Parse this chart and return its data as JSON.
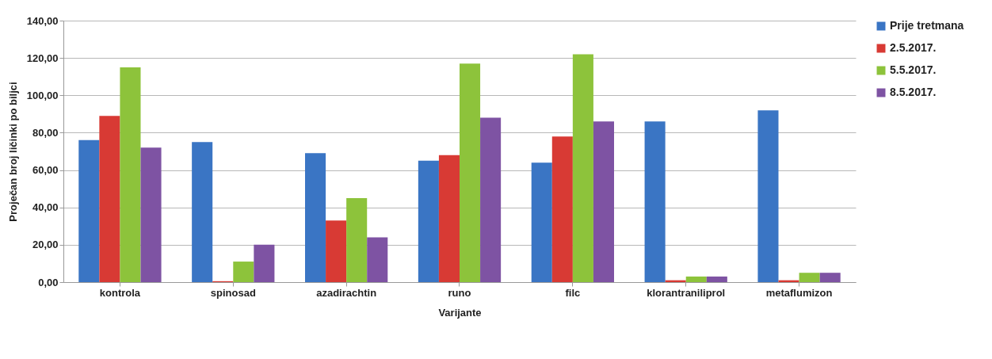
{
  "chart_data": {
    "type": "bar",
    "xlabel": "Varijante",
    "ylabel": "Proječan broj ličinki po biljci",
    "categories": [
      "kontrola",
      "spinosad",
      "azadirachtin",
      "runo",
      "filc",
      "klorantraniliprol",
      "metaflumizon"
    ],
    "series": [
      {
        "name": "Prije tretmana",
        "color": "#3a75c4",
        "values": [
          76,
          75,
          69,
          65,
          64,
          86,
          92
        ]
      },
      {
        "name": "2.5.2017.",
        "color": "#d83a34",
        "values": [
          89,
          0.5,
          33,
          68,
          78,
          1,
          1
        ]
      },
      {
        "name": "5.5.2017.",
        "color": "#8dc33b",
        "values": [
          115,
          11,
          45,
          117,
          122,
          3,
          5
        ]
      },
      {
        "name": "8.5.2017.",
        "color": "#7e53a3",
        "values": [
          72,
          20,
          24,
          88,
          86,
          3,
          5
        ]
      }
    ],
    "ylim": [
      0,
      140
    ],
    "yticks": [
      {
        "value": 0,
        "label": "0,00"
      },
      {
        "value": 20,
        "label": "20,00"
      },
      {
        "value": 40,
        "label": "40,00"
      },
      {
        "value": 60,
        "label": "60,00"
      },
      {
        "value": 80,
        "label": "80,00"
      },
      {
        "value": 100,
        "label": "100,00"
      },
      {
        "value": 120,
        "label": "120,00"
      },
      {
        "value": 140,
        "label": "140,00"
      }
    ],
    "grid": "y",
    "legend": "right"
  }
}
